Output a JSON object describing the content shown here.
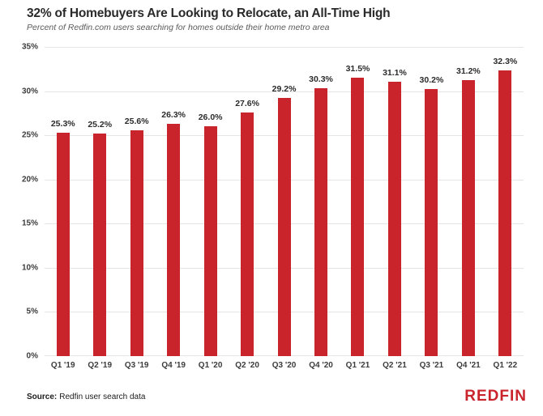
{
  "header": {
    "title": "32% of Homebuyers Are Looking to Relocate, an All-Time High",
    "subtitle": "Percent of Redfin.com users searching for homes outside their home metro area"
  },
  "footer": {
    "source_label": "Source:",
    "source_text": "Redfin user search data",
    "logo_text": "REDFIN"
  },
  "colors": {
    "bar": "#C9242B",
    "logo": "#C9242B",
    "gridline": "#E4E4E4",
    "title_text": "#2A2A2A",
    "subtitle_text": "#5A5A5A",
    "axis_text": "#3C3C3C"
  },
  "chart_data": {
    "type": "bar",
    "title": "32% of Homebuyers Are Looking to Relocate, an All-Time High",
    "subtitle": "Percent of Redfin.com users searching for homes outside their home metro area",
    "categories": [
      "Q1 '19",
      "Q2 '19",
      "Q3 '19",
      "Q4 '19",
      "Q1 '20",
      "Q2 '20",
      "Q3 '20",
      "Q4 '20",
      "Q1 '21",
      "Q2 '21",
      "Q3 '21",
      "Q4 '21",
      "Q1 '22"
    ],
    "values": [
      25.3,
      25.2,
      25.6,
      26.3,
      26.0,
      27.6,
      29.2,
      30.3,
      31.5,
      31.1,
      30.2,
      31.2,
      32.3
    ],
    "value_labels": [
      "25.3%",
      "25.2%",
      "25.6%",
      "26.3%",
      "26.0%",
      "27.6%",
      "29.2%",
      "30.3%",
      "31.5%",
      "31.1%",
      "30.2%",
      "31.2%",
      "32.3%"
    ],
    "xlabel": "",
    "ylabel": "",
    "ylim": [
      0,
      35
    ],
    "y_ticks": [
      0,
      5,
      10,
      15,
      20,
      25,
      30,
      35
    ],
    "y_tick_labels": [
      "0%",
      "5%",
      "10%",
      "15%",
      "20%",
      "25%",
      "30%",
      "35%"
    ],
    "grid": "horizontal",
    "legend": "none",
    "bar_color": "#C9242B"
  }
}
